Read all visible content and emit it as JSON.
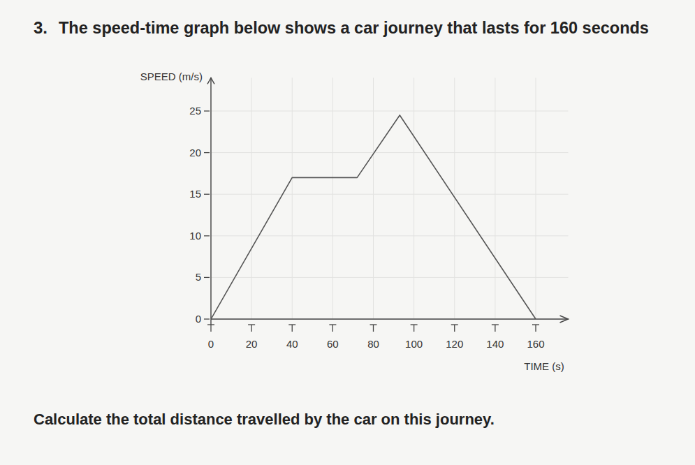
{
  "header": {
    "number": "3.",
    "text": "The speed-time graph below shows a car journey that lasts for 160 seconds"
  },
  "chart_data": {
    "type": "line",
    "x_label": "TIME (s)",
    "y_label": "SPEED (m/s)",
    "x": [
      0,
      40,
      72,
      93,
      160
    ],
    "values": [
      0,
      17,
      17,
      24.5,
      0
    ],
    "color": "#555555",
    "xlim": [
      0,
      176
    ],
    "ylim": [
      0,
      29
    ],
    "xticks": [
      0,
      20,
      40,
      60,
      80,
      100,
      120,
      140,
      160
    ],
    "yticks": [
      0,
      5,
      10,
      15,
      20,
      25
    ],
    "grid": true
  },
  "question": "Calculate the total distance travelled by the car on this journey."
}
